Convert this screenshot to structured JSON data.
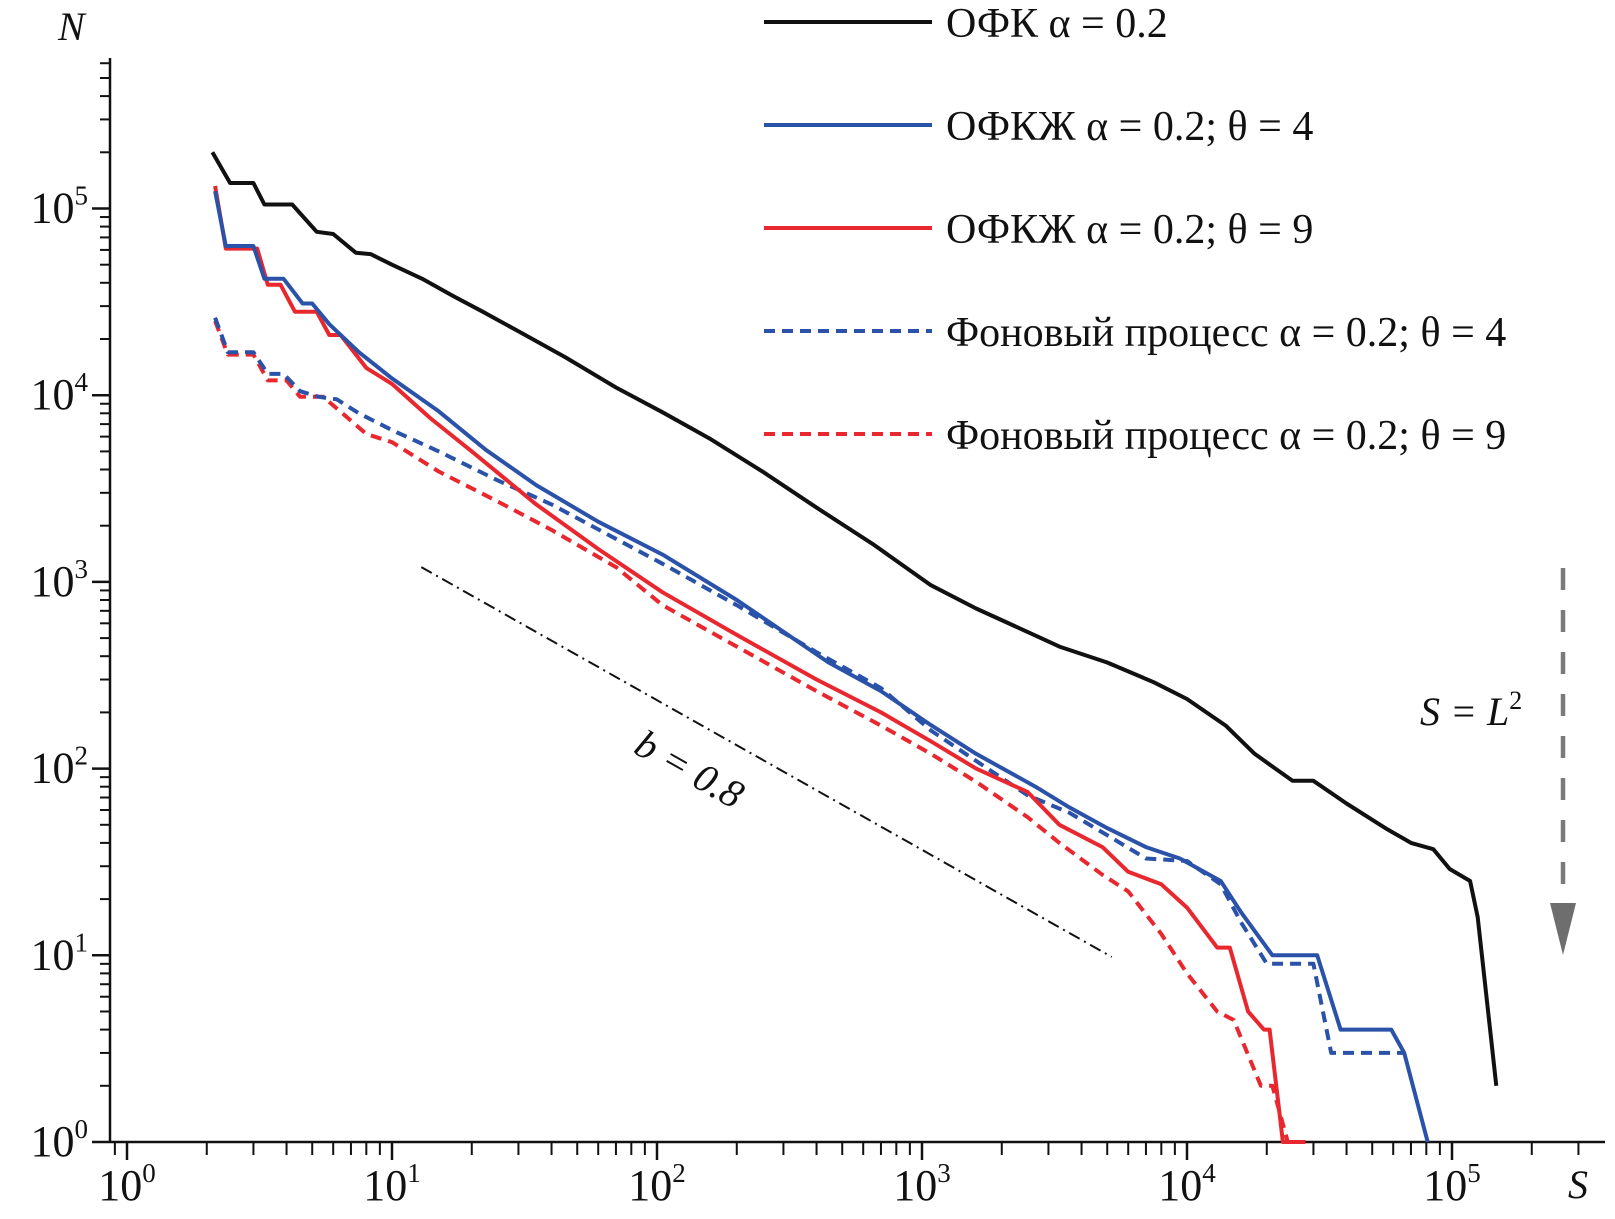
{
  "chart_data": {
    "type": "line",
    "title": "",
    "xlabel": "S",
    "ylabel": "N",
    "xscale": "log",
    "yscale": "log",
    "xlim": [
      0.9,
      350000
    ],
    "ylim": [
      1,
      500000
    ],
    "x_ticks": [
      {
        "base": "10",
        "exp": "0",
        "value": 1
      },
      {
        "base": "10",
        "exp": "1",
        "value": 10
      },
      {
        "base": "10",
        "exp": "2",
        "value": 100
      },
      {
        "base": "10",
        "exp": "3",
        "value": 1000
      },
      {
        "base": "10",
        "exp": "4",
        "value": 10000
      },
      {
        "base": "10",
        "exp": "5",
        "value": 100000
      }
    ],
    "y_ticks": [
      {
        "base": "10",
        "exp": "0",
        "value": 1
      },
      {
        "base": "10",
        "exp": "1",
        "value": 10
      },
      {
        "base": "10",
        "exp": "2",
        "value": 100
      },
      {
        "base": "10",
        "exp": "3",
        "value": 1000
      },
      {
        "base": "10",
        "exp": "4",
        "value": 10000
      },
      {
        "base": "10",
        "exp": "5",
        "value": 100000
      }
    ],
    "grid": false,
    "legend_position": "top-right",
    "series": [
      {
        "name": "ОФК α = 0.2",
        "color": "#111111",
        "dash": "solid",
        "points": [
          [
            2.1,
            200000
          ],
          [
            2.45,
            137000
          ],
          [
            3.0,
            137000
          ],
          [
            3.3,
            105000
          ],
          [
            4.2,
            105000
          ],
          [
            5.2,
            75000
          ],
          [
            6.0,
            73000
          ],
          [
            7.3,
            58000
          ],
          [
            8.3,
            57000
          ],
          [
            10,
            50000
          ],
          [
            13,
            42000
          ],
          [
            17,
            34000
          ],
          [
            22,
            28000
          ],
          [
            30,
            22000
          ],
          [
            45,
            16000
          ],
          [
            70,
            11000
          ],
          [
            105,
            8100
          ],
          [
            160,
            5800
          ],
          [
            250,
            3900
          ],
          [
            400,
            2500
          ],
          [
            650,
            1600
          ],
          [
            1080,
            960
          ],
          [
            1600,
            720
          ],
          [
            2500,
            540
          ],
          [
            3300,
            450
          ],
          [
            5000,
            370
          ],
          [
            7500,
            290
          ],
          [
            10000,
            236
          ],
          [
            14000,
            170
          ],
          [
            18000,
            120
          ],
          [
            25000,
            86
          ],
          [
            30000,
            86
          ],
          [
            40000,
            65
          ],
          [
            56000,
            48
          ],
          [
            70000,
            40
          ],
          [
            85000,
            37
          ],
          [
            98000,
            29
          ],
          [
            117000,
            25
          ],
          [
            125000,
            16
          ],
          [
            147000,
            2
          ]
        ]
      },
      {
        "name": "ОФКЖ α = 0.2; θ = 4",
        "color": "#2a52a8",
        "dash": "solid",
        "points": [
          [
            2.15,
            124000
          ],
          [
            2.36,
            63000
          ],
          [
            3.0,
            63000
          ],
          [
            3.3,
            42000
          ],
          [
            3.9,
            42000
          ],
          [
            4.6,
            31000
          ],
          [
            5.0,
            31000
          ],
          [
            5.8,
            24000
          ],
          [
            7.5,
            17000
          ],
          [
            10,
            12300
          ],
          [
            15,
            8200
          ],
          [
            22.6,
            5100
          ],
          [
            35,
            3300
          ],
          [
            60,
            2100
          ],
          [
            105,
            1400
          ],
          [
            200,
            800
          ],
          [
            442,
            372
          ],
          [
            700,
            260
          ],
          [
            1080,
            171
          ],
          [
            1600,
            120
          ],
          [
            2680,
            80
          ],
          [
            3600,
            62
          ],
          [
            5000,
            48
          ],
          [
            7000,
            38
          ],
          [
            9400,
            33
          ],
          [
            13400,
            25
          ],
          [
            16000,
            17
          ],
          [
            21000,
            10
          ],
          [
            31000,
            10
          ],
          [
            38000,
            4
          ],
          [
            59000,
            4
          ],
          [
            66000,
            3
          ],
          [
            81000,
            1
          ]
        ]
      },
      {
        "name": "ОФКЖ α = 0.2; θ = 9",
        "color": "#e8282e",
        "dash": "solid",
        "points": [
          [
            2.15,
            132000
          ],
          [
            2.36,
            61000
          ],
          [
            3.1,
            61000
          ],
          [
            3.4,
            39000
          ],
          [
            3.8,
            39000
          ],
          [
            4.3,
            28000
          ],
          [
            5.2,
            28000
          ],
          [
            5.8,
            21000
          ],
          [
            6.4,
            21000
          ],
          [
            8,
            14000
          ],
          [
            10,
            11500
          ],
          [
            14,
            7500
          ],
          [
            20,
            5000
          ],
          [
            35,
            2600
          ],
          [
            60,
            1500
          ],
          [
            105,
            880
          ],
          [
            200,
            520
          ],
          [
            400,
            300
          ],
          [
            700,
            200
          ],
          [
            1080,
            140
          ],
          [
            1600,
            100
          ],
          [
            2500,
            75
          ],
          [
            3300,
            50
          ],
          [
            4800,
            38
          ],
          [
            6000,
            28
          ],
          [
            8000,
            24
          ],
          [
            10000,
            18
          ],
          [
            13000,
            11
          ],
          [
            14500,
            11
          ],
          [
            17000,
            5
          ],
          [
            19500,
            4
          ],
          [
            20500,
            4
          ],
          [
            23000,
            1
          ],
          [
            28000,
            1
          ]
        ]
      },
      {
        "name": "Фоновый процесс α = 0.2; θ = 4",
        "color": "#2a52a8",
        "dash": "dashed",
        "points": [
          [
            2.15,
            26000
          ],
          [
            2.4,
            17000
          ],
          [
            3.0,
            17000
          ],
          [
            3.4,
            13000
          ],
          [
            3.9,
            13000
          ],
          [
            4.5,
            10500
          ],
          [
            5.3,
            9800
          ],
          [
            6.2,
            9500
          ],
          [
            7.5,
            8000
          ],
          [
            10,
            6500
          ],
          [
            15,
            5000
          ],
          [
            25,
            3500
          ],
          [
            40,
            2600
          ],
          [
            70,
            1700
          ],
          [
            105,
            1250
          ],
          [
            200,
            750
          ],
          [
            400,
            420
          ],
          [
            700,
            270
          ],
          [
            1080,
            160
          ],
          [
            1600,
            110
          ],
          [
            2500,
            72
          ],
          [
            3600,
            58
          ],
          [
            5000,
            44
          ],
          [
            7000,
            33
          ],
          [
            10000,
            32
          ],
          [
            13400,
            24
          ],
          [
            16000,
            15
          ],
          [
            20000,
            9
          ],
          [
            30000,
            9
          ],
          [
            35000,
            3
          ],
          [
            66000,
            3
          ]
        ]
      },
      {
        "name": "Фоновый процесс α = 0.2; θ = 9",
        "color": "#e8282e",
        "dash": "dashed",
        "points": [
          [
            2.15,
            25000
          ],
          [
            2.4,
            16500
          ],
          [
            3.0,
            16500
          ],
          [
            3.4,
            12000
          ],
          [
            4.0,
            12000
          ],
          [
            4.5,
            9800
          ],
          [
            5.5,
            9800
          ],
          [
            6.5,
            8000
          ],
          [
            8,
            6200
          ],
          [
            10,
            5600
          ],
          [
            15,
            3900
          ],
          [
            25,
            2700
          ],
          [
            40,
            1900
          ],
          [
            70,
            1200
          ],
          [
            105,
            750
          ],
          [
            200,
            450
          ],
          [
            400,
            260
          ],
          [
            700,
            170
          ],
          [
            1080,
            120
          ],
          [
            1600,
            85
          ],
          [
            2500,
            55
          ],
          [
            3300,
            40
          ],
          [
            4800,
            27
          ],
          [
            6000,
            22
          ],
          [
            8000,
            13
          ],
          [
            10000,
            8
          ],
          [
            13000,
            5
          ],
          [
            15000,
            4.5
          ],
          [
            19000,
            2
          ],
          [
            21000,
            2
          ],
          [
            24000,
            1
          ]
        ]
      }
    ],
    "annotations": [
      {
        "name": "power-law-reference",
        "label_prefix": "b",
        "label_eq": " = ",
        "label_value": "0.8",
        "style": "dash-dot",
        "color": "#111111",
        "points": [
          [
            12.9,
            1200
          ],
          [
            5200,
            9.8
          ]
        ]
      },
      {
        "name": "cutoff-arrow",
        "label_var": "S",
        "label_eq": " = ",
        "label_L": "L",
        "label_exp": "2",
        "color": "#7a7a7a",
        "style": "dashed-arrow-down"
      }
    ]
  }
}
